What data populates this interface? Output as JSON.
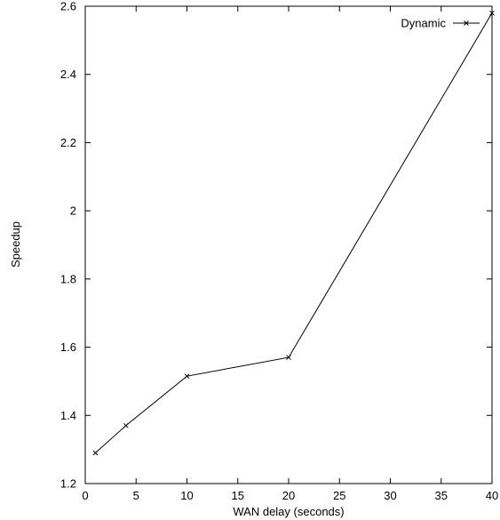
{
  "colors": {
    "background": "#ffffff",
    "axis": "#000000",
    "series_line": "#000000"
  },
  "chart_data": {
    "type": "line",
    "title": "",
    "xlabel": "WAN delay (seconds)",
    "ylabel": "Speedup",
    "xlim": [
      0,
      40
    ],
    "ylim": [
      1.2,
      2.6
    ],
    "x_ticks": [
      0,
      5,
      10,
      15,
      20,
      25,
      30,
      35,
      40
    ],
    "x_tick_labels": [
      "0",
      "5",
      "10",
      "15",
      "20",
      "25",
      "30",
      "35",
      "40"
    ],
    "y_ticks": [
      1.2,
      1.4,
      1.6,
      1.8,
      2.0,
      2.2,
      2.4,
      2.6
    ],
    "y_tick_labels": [
      "1.2",
      "1.4",
      "1.6",
      "1.8",
      "2",
      "2.2",
      "2.4",
      "2.6"
    ],
    "grid": false,
    "legend_position": "top-right",
    "series": [
      {
        "name": "Dynamic",
        "marker": "cross",
        "x": [
          1,
          4,
          10,
          20,
          40
        ],
        "y": [
          1.29,
          1.37,
          1.515,
          1.57,
          2.58
        ]
      }
    ]
  }
}
